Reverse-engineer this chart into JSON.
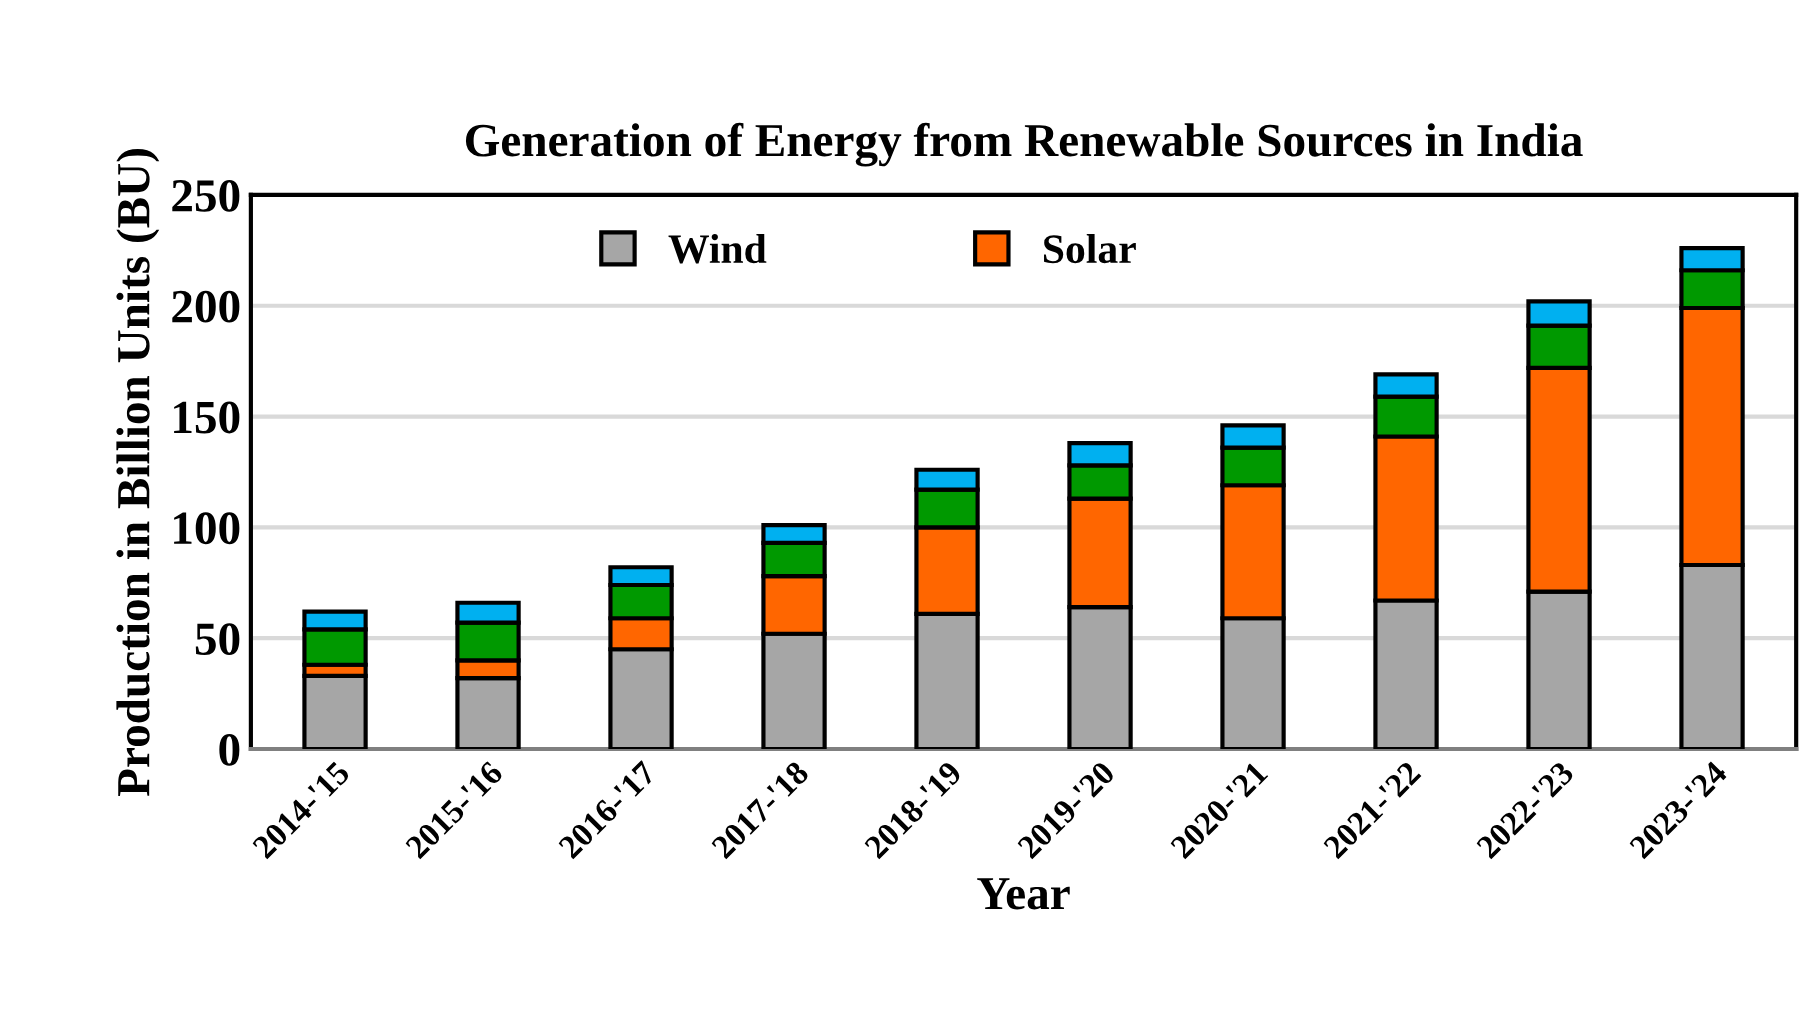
{
  "chart_data": {
    "type": "bar",
    "title": "Generation of Energy from Renewable Sources in India",
    "xlabel": "Year",
    "ylabel": "Production in Billion Units (BU)",
    "categories": [
      "2014-'15",
      "2015-'16",
      "2016-'17",
      "2017-'18",
      "2018-'19",
      "2019-'20",
      "2020-'21",
      "2021-'22",
      "2022-'23",
      "2023-'24"
    ],
    "stacked": true,
    "series": [
      {
        "name": "Wind",
        "color": "#a6a6a6",
        "values": [
          33,
          32,
          45,
          52,
          61,
          64,
          59,
          67,
          71,
          83
        ]
      },
      {
        "name": "Solar",
        "color": "#ff6600",
        "values": [
          5,
          8,
          14,
          26,
          39,
          49,
          60,
          74,
          101,
          116
        ]
      },
      {
        "color": "#009900",
        "values": [
          16,
          17,
          15,
          15,
          17,
          15,
          17,
          18,
          19,
          17
        ]
      },
      {
        "color": "#00b0f0",
        "values": [
          8,
          9,
          8,
          8,
          9,
          10,
          10,
          10,
          11,
          10
        ]
      }
    ],
    "ylim": [
      0,
      250
    ],
    "yticks": [
      0,
      50,
      100,
      150,
      200,
      250
    ],
    "grid": "y",
    "legend": "top"
  }
}
